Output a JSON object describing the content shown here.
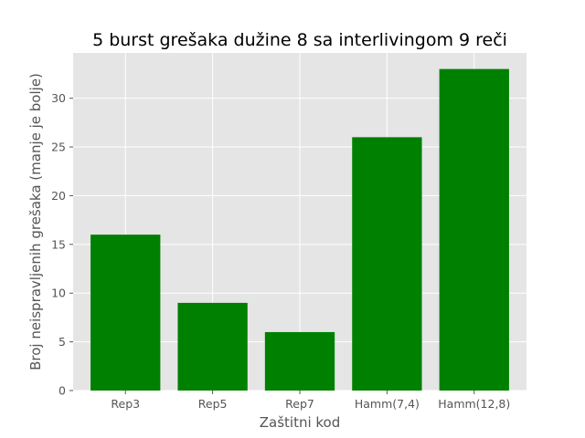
{
  "chart_data": {
    "type": "bar",
    "title": "5 burst grešaka dužine 8 sa interlivingom 9 reči",
    "xlabel": "Zaštitni kod",
    "ylabel": "Broj neispravljenih grešaka (manje je bolje)",
    "categories": [
      "Rep3",
      "Rep5",
      "Rep7",
      "Hamm(7,4)",
      "Hamm(12,8)"
    ],
    "values": [
      16,
      9,
      6,
      26,
      33
    ],
    "ylim": [
      0,
      34.65
    ],
    "yticks": [
      0,
      5,
      10,
      15,
      20,
      25,
      30
    ],
    "grid": true,
    "bar_color": "#008000",
    "background_color": "#e5e5e5",
    "grid_color": "#ffffff"
  }
}
